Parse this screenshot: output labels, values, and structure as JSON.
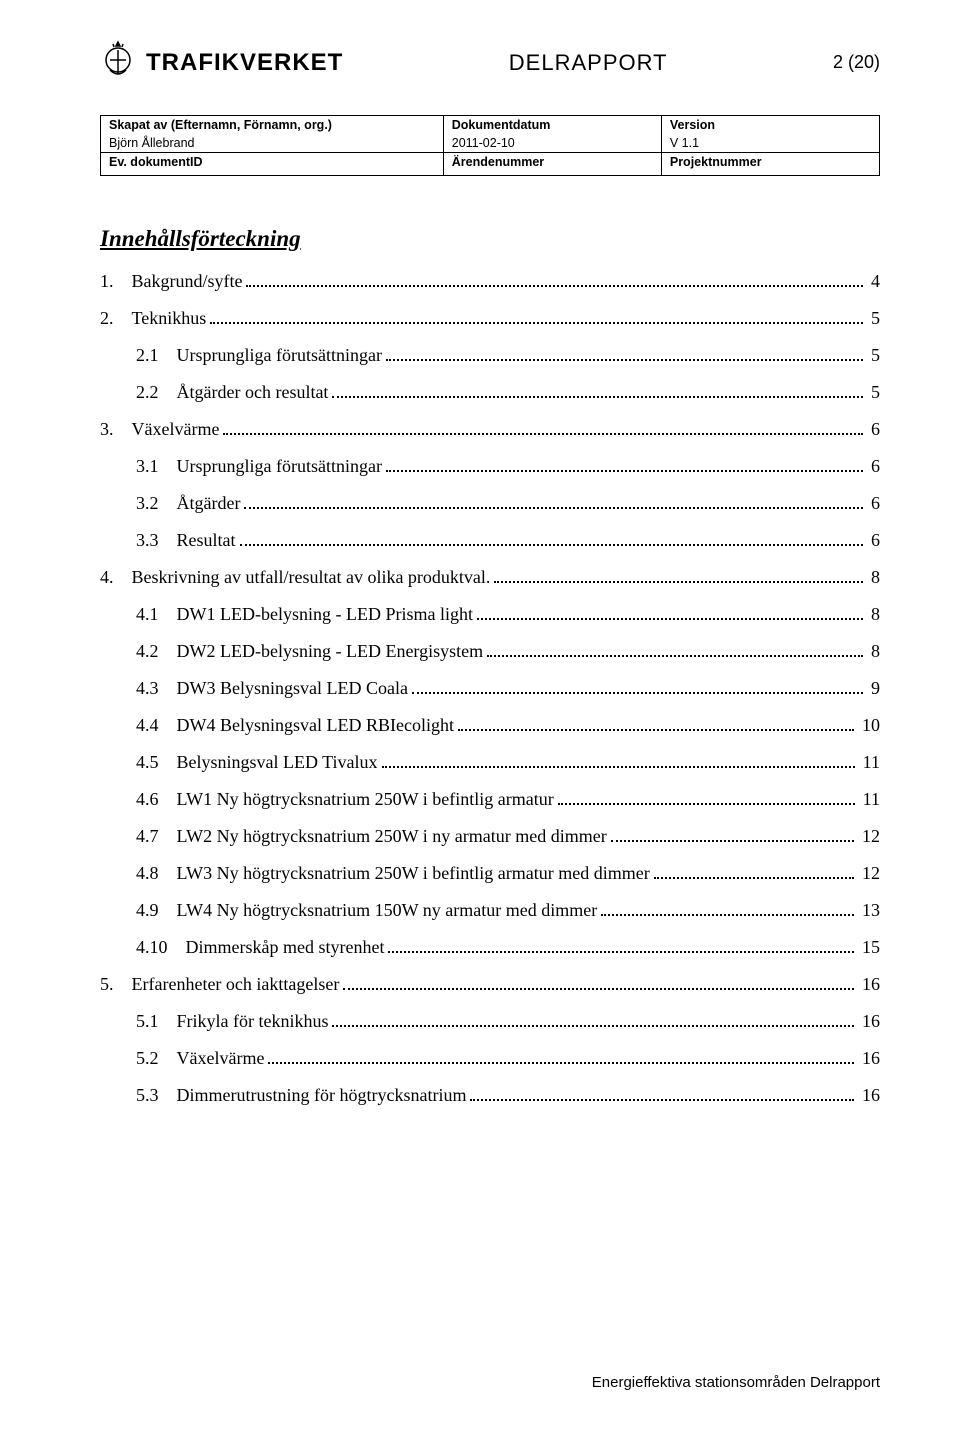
{
  "header": {
    "brand": "TRAFIKVERKET",
    "doc_type": "DELRAPPORT",
    "page_indicator": "2 (20)"
  },
  "meta": {
    "row1": {
      "c1_label": "Skapat av (Efternamn, Förnamn, org.)",
      "c1_value": "Björn Ållebrand",
      "c2_label": "Dokumentdatum",
      "c2_value": "2011-02-10",
      "c3_label": "Version",
      "c3_value": "V 1.1"
    },
    "row2": {
      "c1_label": "Ev. dokumentID",
      "c1_value": "",
      "c2_label": "Ärendenummer",
      "c2_value": "",
      "c3_label": "Projektnummer",
      "c3_value": ""
    }
  },
  "toc": {
    "title": "Innehållsförteckning",
    "items": [
      {
        "level": 1,
        "num": "1.",
        "label": "Bakgrund/syfte",
        "page": "4"
      },
      {
        "level": 1,
        "num": "2.",
        "label": "Teknikhus",
        "page": "5"
      },
      {
        "level": 2,
        "num": "2.1",
        "label": "Ursprungliga förutsättningar",
        "page": "5"
      },
      {
        "level": 2,
        "num": "2.2",
        "label": "Åtgärder och resultat",
        "page": "5"
      },
      {
        "level": 1,
        "num": "3.",
        "label": "Växelvärme",
        "page": "6"
      },
      {
        "level": 2,
        "num": "3.1",
        "label": "Ursprungliga förutsättningar",
        "page": "6"
      },
      {
        "level": 2,
        "num": "3.2",
        "label": "Åtgärder",
        "page": "6"
      },
      {
        "level": 2,
        "num": "3.3",
        "label": "Resultat",
        "page": "6"
      },
      {
        "level": 1,
        "num": "4.",
        "label": "Beskrivning av utfall/resultat av olika produktval.",
        "page": "8"
      },
      {
        "level": 2,
        "num": "4.1",
        "label": "DW1  LED-belysning - LED Prisma light",
        "page": "8"
      },
      {
        "level": 2,
        "num": "4.2",
        "label": "DW2 LED-belysning - LED Energisystem",
        "page": "8"
      },
      {
        "level": 2,
        "num": "4.3",
        "label": "DW3  Belysningsval LED Coala",
        "page": "9"
      },
      {
        "level": 2,
        "num": "4.4",
        "label": "DW4 Belysningsval LED RBIecolight",
        "page": "10"
      },
      {
        "level": 2,
        "num": "4.5",
        "label": "Belysningsval LED Tivalux",
        "page": "11"
      },
      {
        "level": 2,
        "num": "4.6",
        "label": "LW1 Ny högtrycksnatrium 250W i befintlig armatur",
        "page": "11"
      },
      {
        "level": 2,
        "num": "4.7",
        "label": "LW2 Ny högtrycksnatrium 250W i ny armatur med dimmer",
        "page": "12"
      },
      {
        "level": 2,
        "num": "4.8",
        "label": "LW3 Ny högtrycksnatrium 250W i befintlig armatur med dimmer",
        "page": "12"
      },
      {
        "level": 2,
        "num": "4.9",
        "label": "LW4 Ny högtrycksnatrium 150W ny armatur med dimmer",
        "page": "13"
      },
      {
        "level": 2,
        "num": "4.10",
        "label": "Dimmerskåp med styrenhet",
        "page": "15"
      },
      {
        "level": 1,
        "num": "5.",
        "label": "Erfarenheter och iakttagelser",
        "page": "16"
      },
      {
        "level": 2,
        "num": "5.1",
        "label": "Frikyla för teknikhus",
        "page": "16"
      },
      {
        "level": 2,
        "num": "5.2",
        "label": "Växelvärme",
        "page": "16"
      },
      {
        "level": 2,
        "num": "5.3",
        "label": "Dimmerutrustning för högtrycksnatrium",
        "page": "16"
      }
    ]
  },
  "footer": "Energieffektiva stationsområden Delrapport"
}
